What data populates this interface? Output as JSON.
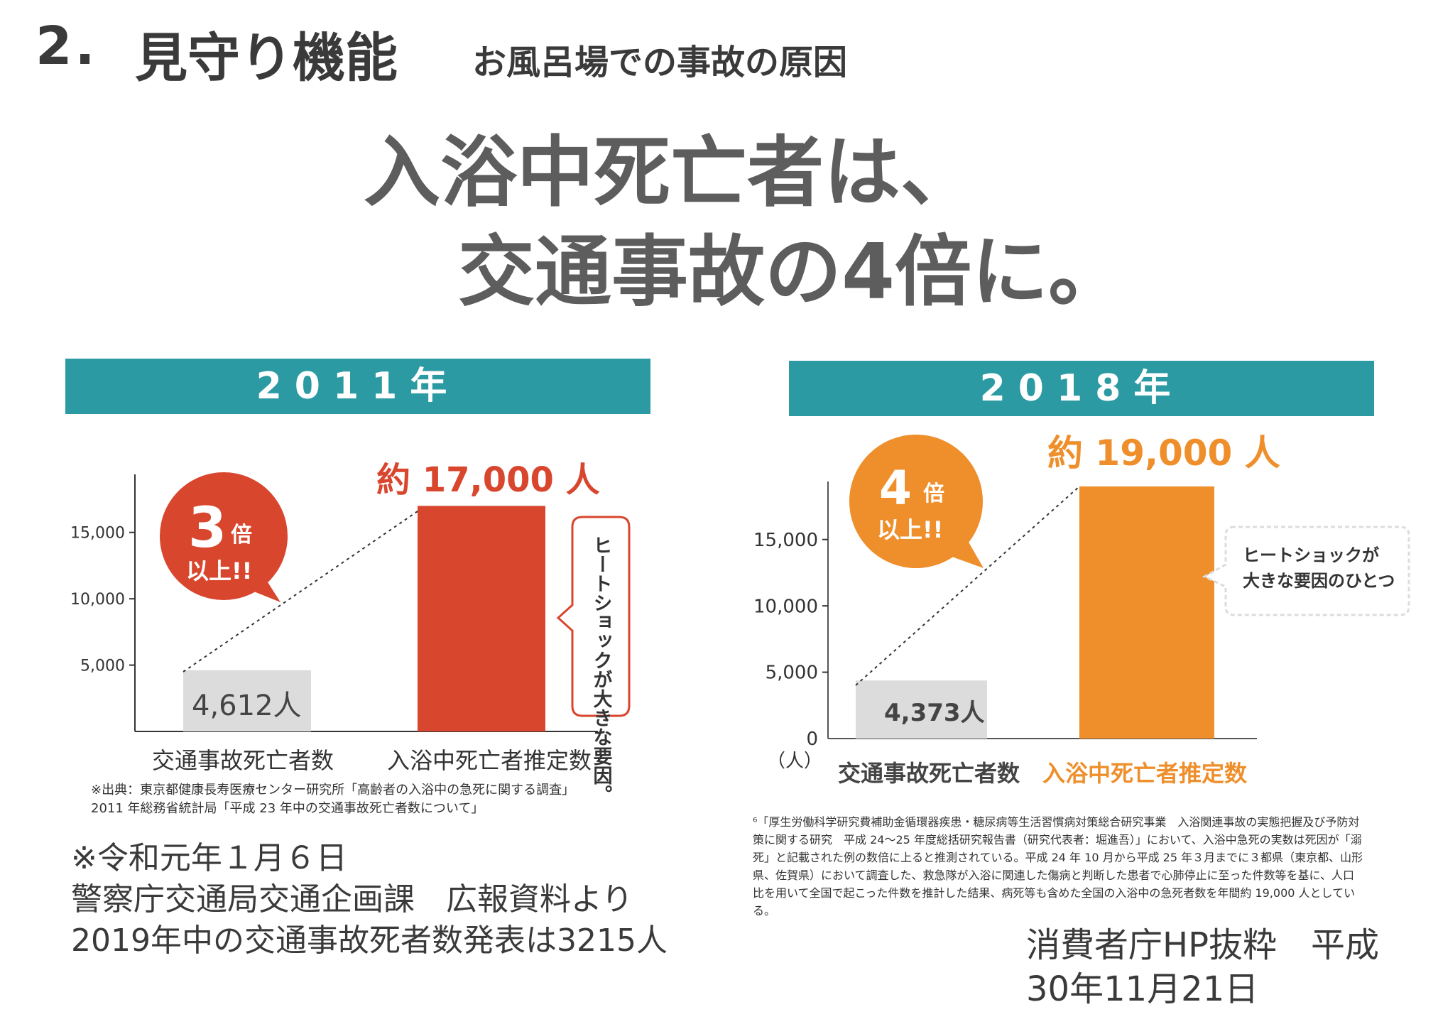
{
  "header": {
    "number": "2.",
    "title": "見守り機能",
    "subtitle": "お風呂場での事故の原因"
  },
  "headline": {
    "line1": "入浴中死亡者は、",
    "line2": "交通事故の4倍に。"
  },
  "colors": {
    "teal": "#2c9aa3",
    "red": "#d9462e",
    "orange": "#ee8f2c",
    "gray_bar": "#dcdcdc"
  },
  "chart_data": [
    {
      "type": "bar",
      "year_label": "2011年",
      "categories": [
        "交通事故死亡者数",
        "入浴中死亡者推定数"
      ],
      "values": [
        4612,
        17000
      ],
      "value_labels": [
        "4,612人",
        "約 17,000 人"
      ],
      "yticks": [
        "5,000",
        "10,000",
        "15,000"
      ],
      "ylim": [
        0,
        19000
      ],
      "badge": {
        "big": "3",
        "small": "倍",
        "line2": "以上!!"
      },
      "callout": "ヒートショックが大きな要因。",
      "source_lines": [
        "※出典：東京都健康長寿医療センター研究所「高齢者の入浴中の急死に関する調査」",
        "2011 年総務省統計局「平成 23 年中の交通事故死亡者数について」"
      ]
    },
    {
      "type": "bar",
      "year_label": "2018年",
      "categories": [
        "交通事故死亡者数",
        "入浴中死亡者推定数"
      ],
      "values": [
        4373,
        19000
      ],
      "value_labels": [
        "4,373人",
        "約 19,000 人"
      ],
      "yticks": [
        "0",
        "5,000",
        "10,000",
        "15,000"
      ],
      "y_unit": "（人）",
      "ylim": [
        0,
        19000
      ],
      "badge": {
        "big": "4",
        "small": "倍",
        "line2": "以上!!"
      },
      "callout": {
        "line1": "ヒートショックが",
        "line2": "大きな要因のひとつ"
      },
      "footnote": [
        "⁶「厚生労働科学研究費補助金循環器疾患・糖尿病等生活習慣病対策総合研究事業　入浴関連事故の実態把握及び予防対",
        "策に関する研究　平成 24～25 年度総括研究報告書（研究代表者：堀進吾）」において、入浴中急死の実数は死因が「溺",
        "死」と記載された例の数倍に上ると推測されている。平成 24 年 10 月から平成 25 年３月までに３都県（東京都、山形",
        "県、佐賀県）において調査した、救急隊が入浴に関連した傷病と判断した患者で心肺停止に至った件数等を基に、人口",
        "比を用いて全国で起こった件数を推計した結果、病死等も含めた全国の入浴中の急死者数を年間約 19,000 人としてい",
        "る。"
      ]
    }
  ],
  "notes": {
    "line1": "※令和元年１月６日",
    "line2": "警察庁交通局交通企画課　広報資料より",
    "line3": "2019年中の交通事故死者数発表は3215人"
  },
  "credit": {
    "line1": "消費者庁HP抜粋　平成",
    "line2": "30年11月21日"
  }
}
